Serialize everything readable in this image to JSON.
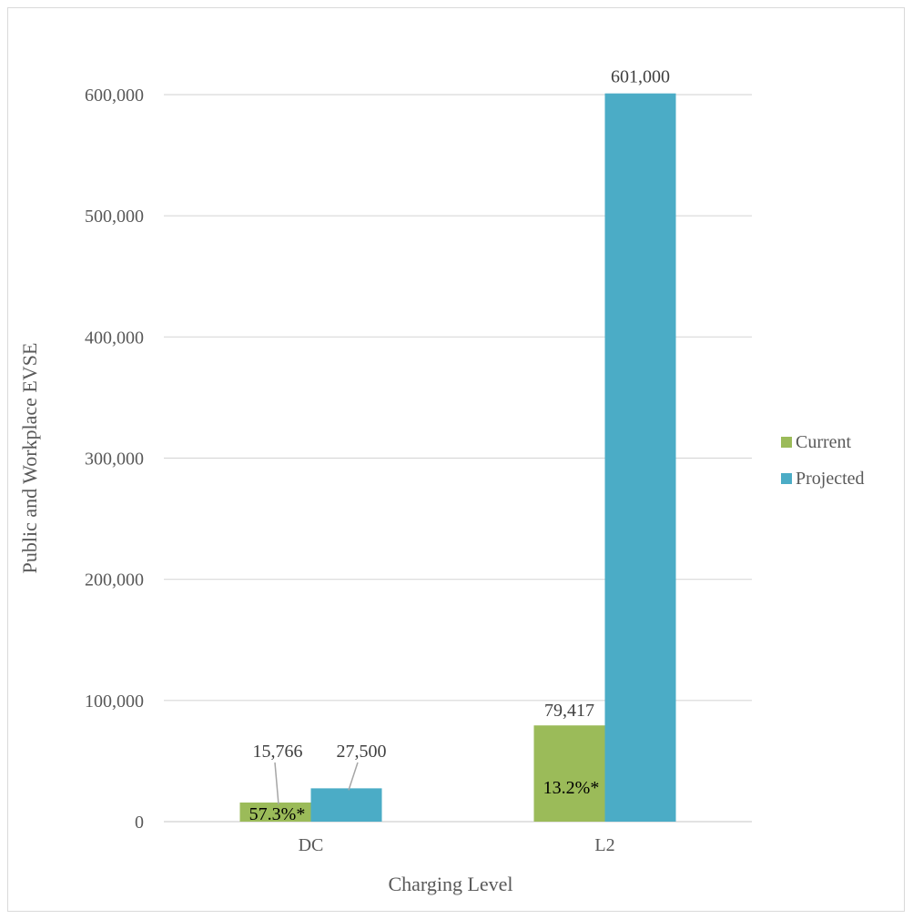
{
  "chart_data": {
    "type": "bar",
    "categories": [
      "DC",
      "L2"
    ],
    "series": [
      {
        "name": "Current",
        "color": "#9bbb59",
        "values": [
          15766,
          79417
        ],
        "labels": [
          "15,766",
          "79,417"
        ],
        "inner_labels": [
          "57.3%*",
          "13.2%*"
        ]
      },
      {
        "name": "Projected",
        "color": "#4bacc6",
        "values": [
          27500,
          601000
        ],
        "labels": [
          "27,500",
          "601,000"
        ]
      }
    ],
    "xlabel": "Charging Level",
    "ylabel": "Public and Workplace EVSE",
    "ylim": [
      0,
      600000
    ],
    "yticks": [
      0,
      100000,
      200000,
      300000,
      400000,
      500000,
      600000
    ],
    "ytick_labels": [
      "0",
      "100,000",
      "200,000",
      "300,000",
      "400,000",
      "500,000",
      "600,000"
    ],
    "grid": true,
    "legend_position": "right"
  }
}
